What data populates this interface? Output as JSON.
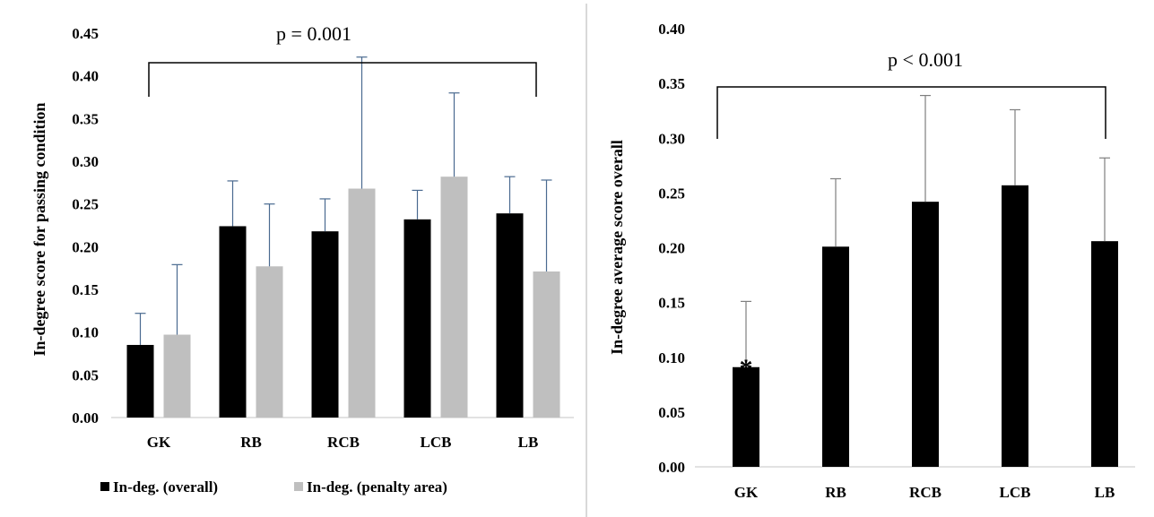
{
  "chart_data": [
    {
      "type": "bar",
      "categories": [
        "GK",
        "RB",
        "RCB",
        "LCB",
        "LB"
      ],
      "series": [
        {
          "name": "In-deg. (overall)",
          "color": "#000000",
          "values": [
            0.085,
            0.224,
            0.218,
            0.232,
            0.239
          ],
          "errors": [
            0.037,
            0.053,
            0.038,
            0.034,
            0.043
          ]
        },
        {
          "name": "In-deg. (penalty area)",
          "color": "#bfbfbf",
          "values": [
            0.097,
            0.177,
            0.268,
            0.282,
            0.171
          ],
          "errors": [
            0.082,
            0.073,
            0.154,
            0.098,
            0.107
          ]
        }
      ],
      "ylabel": "In-degree score  for passing condition",
      "ylim": [
        0,
        0.45
      ],
      "yticks": [
        "0.00",
        "0.05",
        "0.10",
        "0.15",
        "0.20",
        "0.25",
        "0.30",
        "0.35",
        "0.40",
        "0.45"
      ],
      "annotation": "p = 0.001",
      "legend_position": "bottom",
      "grid": false
    },
    {
      "type": "bar",
      "categories": [
        "GK",
        "RB",
        "RCB",
        "LCB",
        "LB"
      ],
      "series": [
        {
          "color": "#000000",
          "values": [
            0.091,
            0.201,
            0.242,
            0.257,
            0.206
          ],
          "errors": [
            0.06,
            0.062,
            0.097,
            0.069,
            0.076
          ]
        }
      ],
      "ylabel": "In-degree average score overall",
      "ylim": [
        0,
        0.4
      ],
      "yticks": [
        "0.00",
        "0.05",
        "0.10",
        "0.15",
        "0.20",
        "0.25",
        "0.30",
        "0.35",
        "0.40"
      ],
      "annotation": "p < 0.001",
      "significance_marker": "*",
      "grid": false
    }
  ],
  "colors": {
    "divider": "#d9d9d9",
    "error_bar": "#4a6a90",
    "error_bar_right": "#7f7f7f"
  }
}
